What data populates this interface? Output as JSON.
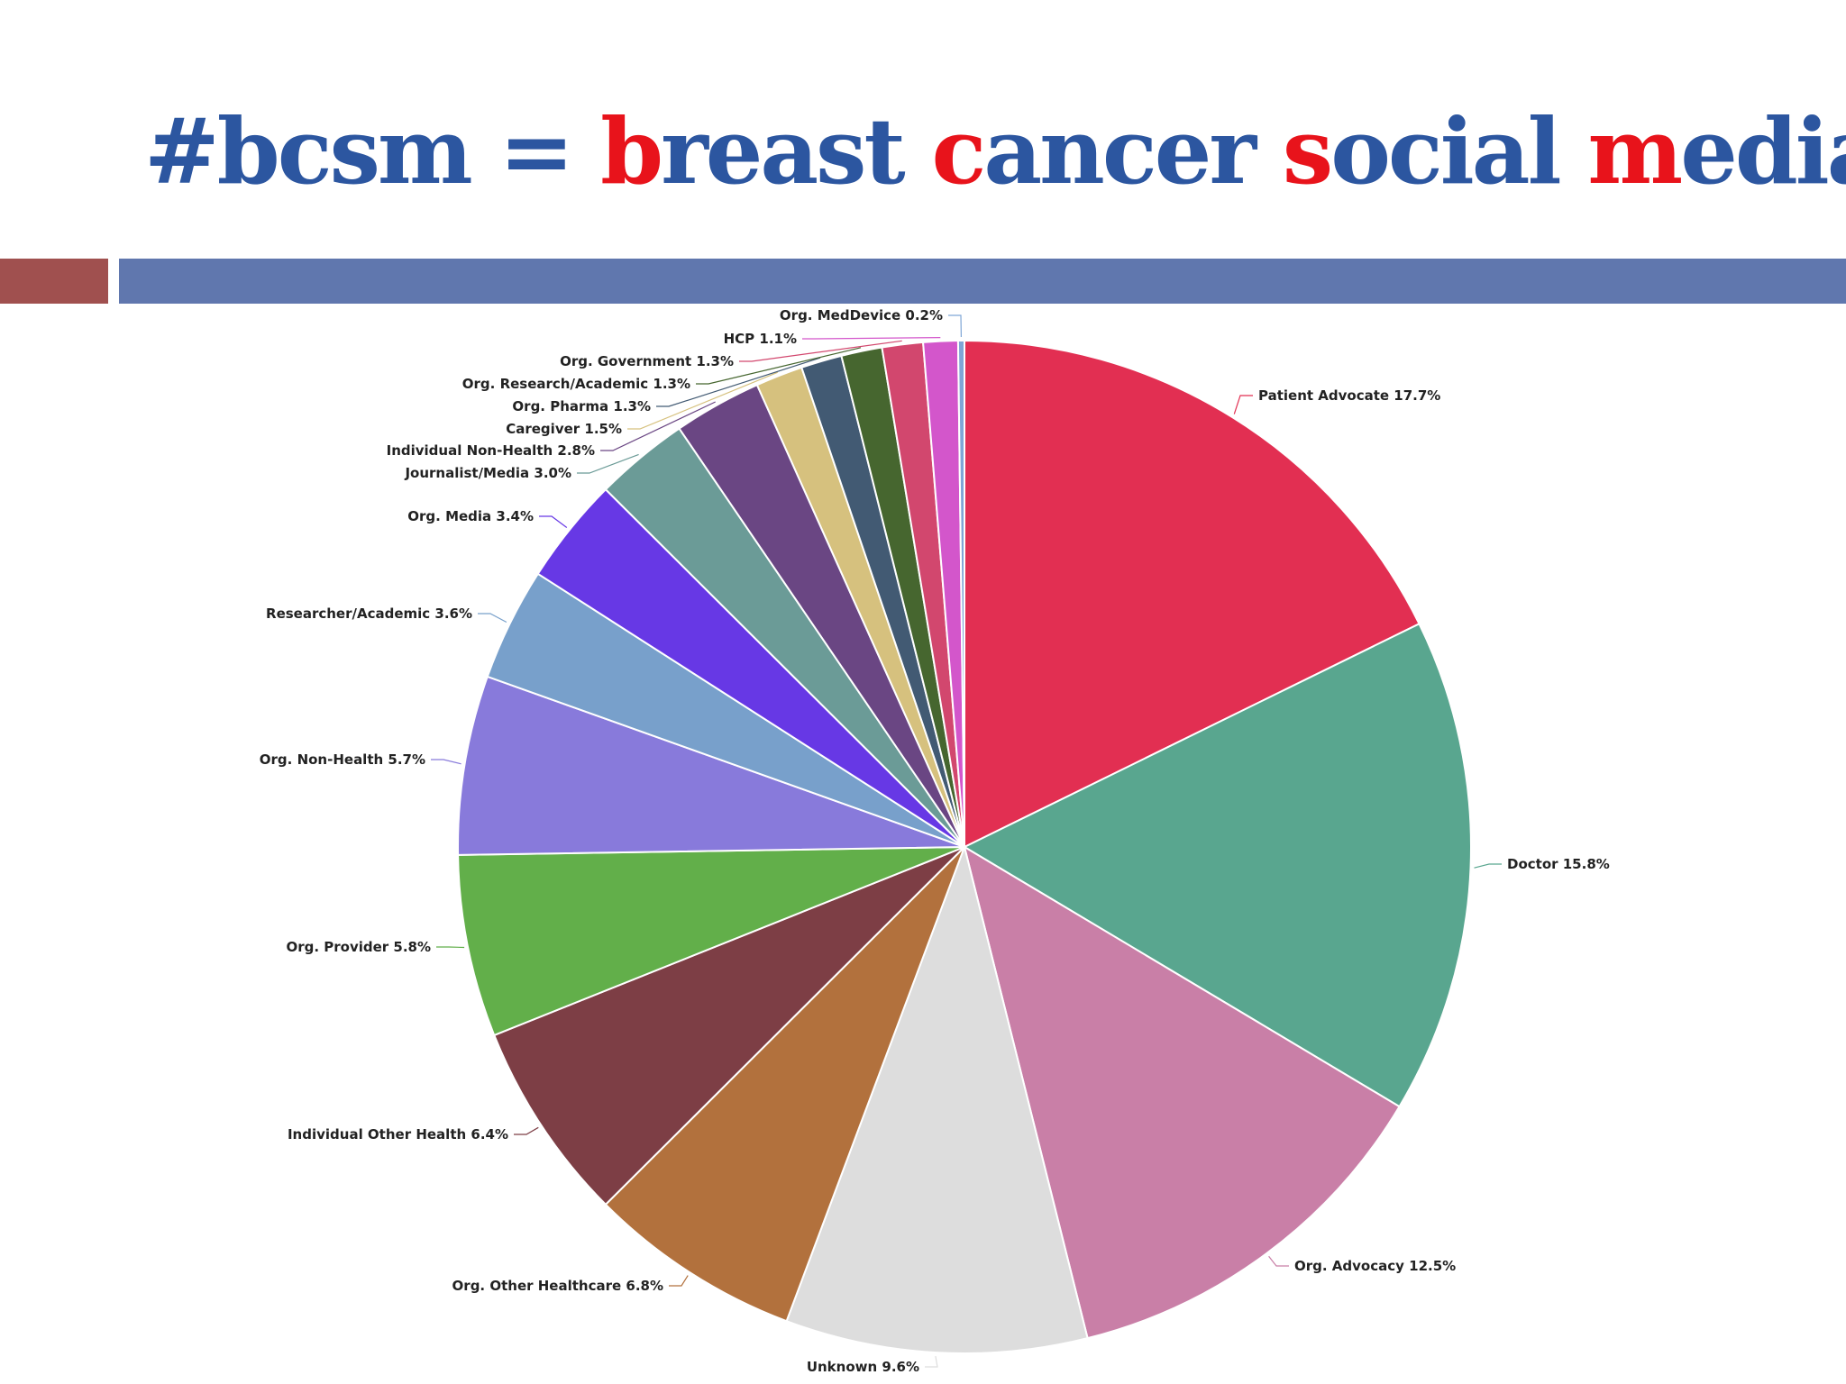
{
  "title": {
    "parts": [
      {
        "text": "#bcsm = ",
        "accent": false
      },
      {
        "text": "b",
        "accent": true
      },
      {
        "text": "reast ",
        "accent": false
      },
      {
        "text": "c",
        "accent": true
      },
      {
        "text": "ancer ",
        "accent": false
      },
      {
        "text": "s",
        "accent": true
      },
      {
        "text": "ocial ",
        "accent": false
      },
      {
        "text": "m",
        "accent": true
      },
      {
        "text": "edia",
        "accent": false
      }
    ],
    "main_color": "#2c56a0",
    "accent_color": "#e8131b"
  },
  "decor": {
    "left_bar_color": "#a0504f",
    "right_bar_color": "#6077ae"
  },
  "chart_data": {
    "type": "pie",
    "title": "",
    "start": "12 o'clock, clockwise",
    "slices": [
      {
        "label": "Patient Advocate",
        "value": 17.7,
        "display": "Patient Advocate 17.7%",
        "color": "#e22f52"
      },
      {
        "label": "Doctor",
        "value": 15.8,
        "display": "Doctor 15.8%",
        "color": "#59a68f"
      },
      {
        "label": "Org. Advocacy",
        "value": 12.5,
        "display": "Org. Advocacy 12.5%",
        "color": "#c97fa7"
      },
      {
        "label": "Unknown",
        "value": 9.6,
        "display": "Unknown 9.6%",
        "color": "#dddddd"
      },
      {
        "label": "Org. Other Healthcare",
        "value": 6.8,
        "display": "Org. Other Healthcare 6.8%",
        "color": "#b2713d"
      },
      {
        "label": "Individual Other Health",
        "value": 6.4,
        "display": "Individual Other Health 6.4%",
        "color": "#7d3e45"
      },
      {
        "label": "Org. Provider",
        "value": 5.8,
        "display": "Org. Provider 5.8%",
        "color": "#62af4a"
      },
      {
        "label": "Org. Non-Health",
        "value": 5.7,
        "display": "Org. Non-Health 5.7%",
        "color": "#887adb"
      },
      {
        "label": "Researcher/Academic",
        "value": 3.6,
        "display": "Researcher/Academic 3.6%",
        "color": "#78a0cb"
      },
      {
        "label": "Org. Media",
        "value": 3.4,
        "display": "Org. Media 3.4%",
        "color": "#6738e5"
      },
      {
        "label": "Journalist/Media",
        "value": 3.0,
        "display": "Journalist/Media 3.0%",
        "color": "#6b9b97"
      },
      {
        "label": "Individual Non-Health",
        "value": 2.8,
        "display": "Individual Non-Health 2.8%",
        "color": "#6a4683"
      },
      {
        "label": "Caregiver",
        "value": 1.5,
        "display": "Caregiver 1.5%",
        "color": "#d6c17e"
      },
      {
        "label": "Org. Pharma",
        "value": 1.3,
        "display": "Org. Pharma 1.3%",
        "color": "#425a73"
      },
      {
        "label": "Org. Research/Academic",
        "value": 1.3,
        "display": "Org. Research/Academic 1.3%",
        "color": "#46662f"
      },
      {
        "label": "Org. Government",
        "value": 1.3,
        "display": "Org. Government 1.3%",
        "color": "#d2476e"
      },
      {
        "label": "HCP",
        "value": 1.1,
        "display": "HCP 1.1%",
        "color": "#d356cb"
      },
      {
        "label": "Org. MedDevice",
        "value": 0.2,
        "display": "Org. MedDevice 0.2%",
        "color": "#7fa6d6"
      }
    ]
  }
}
